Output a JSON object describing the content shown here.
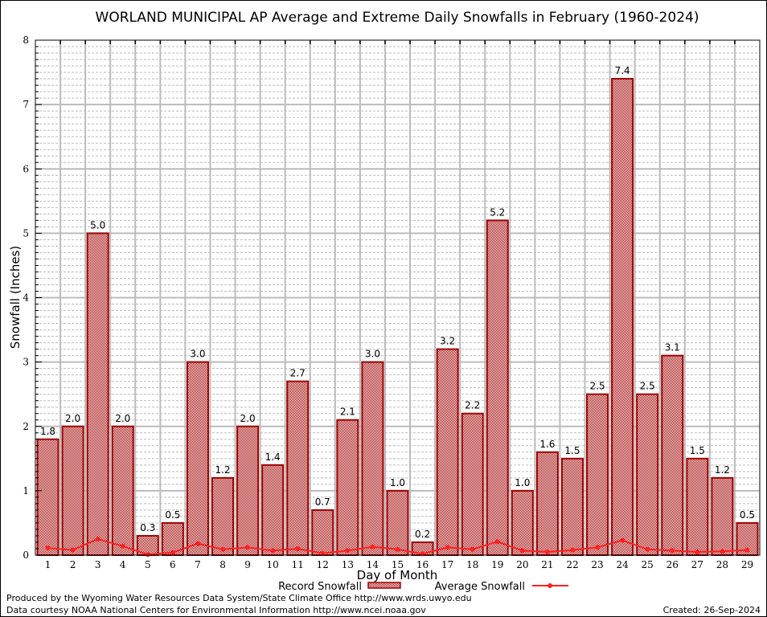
{
  "chart_data": {
    "type": "bar",
    "title": "WORLAND MUNICIPAL AP Average and Extreme Daily Snowfalls in February (1960-2024)",
    "xlabel": "Day of Month",
    "ylabel": "Snowfall (Inches)",
    "ylim": [
      0,
      8
    ],
    "yticks": [
      "0",
      "1",
      "2",
      "3",
      "4",
      "5",
      "6",
      "7",
      "8"
    ],
    "categories": [
      "1",
      "2",
      "3",
      "4",
      "5",
      "6",
      "7",
      "8",
      "9",
      "10",
      "11",
      "12",
      "13",
      "14",
      "15",
      "16",
      "17",
      "18",
      "19",
      "20",
      "21",
      "22",
      "23",
      "24",
      "25",
      "26",
      "27",
      "28",
      "29"
    ],
    "series": [
      {
        "name": "Record Snowfall",
        "type": "bar",
        "color": "#a00000",
        "values": [
          1.8,
          2.0,
          5.0,
          2.0,
          0.3,
          0.5,
          3.0,
          1.2,
          2.0,
          1.4,
          2.7,
          0.7,
          2.1,
          3.0,
          1.0,
          0.2,
          3.2,
          2.2,
          5.2,
          1.0,
          1.6,
          1.5,
          2.5,
          7.4,
          2.5,
          3.1,
          1.5,
          1.2,
          0.5
        ],
        "labels": [
          "1.8",
          "2.0",
          "5.0",
          "2.0",
          "0.3",
          "0.5",
          "3.0",
          "1.2",
          "2.0",
          "1.4",
          "2.7",
          "0.7",
          "2.1",
          "3.0",
          "1.0",
          "0.2",
          "3.2",
          "2.2",
          "5.2",
          "1.0",
          "1.6",
          "1.5",
          "2.5",
          "7.4",
          "2.5",
          "3.1",
          "1.5",
          "1.2",
          "0.5"
        ]
      },
      {
        "name": "Average Snowfall",
        "type": "line",
        "color": "#ff2020",
        "values": [
          0.11,
          0.08,
          0.25,
          0.14,
          0.01,
          0.04,
          0.18,
          0.09,
          0.12,
          0.07,
          0.1,
          0.03,
          0.07,
          0.13,
          0.09,
          0.02,
          0.12,
          0.09,
          0.21,
          0.07,
          0.05,
          0.08,
          0.12,
          0.23,
          0.09,
          0.07,
          0.05,
          0.06,
          0.08
        ]
      }
    ],
    "grid": true,
    "legend": "bottom-center"
  },
  "footer": {
    "line1": "Produced by the Wyoming Water Resources Data System/State Climate Office http://www.wrds.uwyo.edu",
    "line2": "Data courtesy NOAA National Centers for Environmental Information http://www.ncei.noaa.gov",
    "created": "Created: 26-Sep-2024"
  }
}
